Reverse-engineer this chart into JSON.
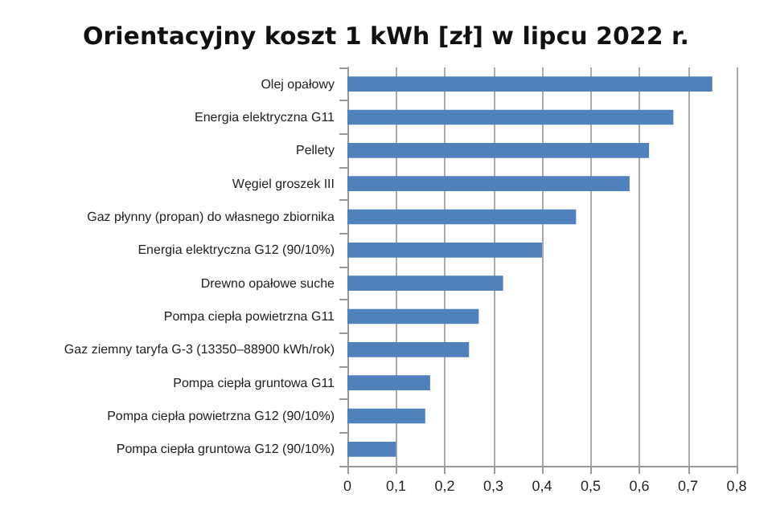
{
  "chart_data": {
    "type": "bar",
    "orientation": "horizontal",
    "title": "Orientacyjny koszt 1 kWh [zł] w lipcu 2022 r.",
    "categories": [
      "Olej opałowy",
      "Energia elektryczna G11",
      "Pellety",
      "Węgiel groszek III",
      "Gaz płynny (propan) do własnego zbiornika",
      "Energia elektryczna G12 (90/10%)",
      "Drewno opałowe suche",
      "Pompa ciepła powietrzna G11",
      "Gaz ziemny taryfa G-3 (13350–88900 kWh/rok)",
      "Pompa ciepła gruntowa G11",
      "Pompa ciepła powietrzna G12 (90/10%)",
      "Pompa ciepła gruntowa G12 (90/10%)"
    ],
    "values": [
      0.75,
      0.67,
      0.62,
      0.58,
      0.47,
      0.4,
      0.32,
      0.27,
      0.25,
      0.17,
      0.16,
      0.1
    ],
    "color": "#4f81bd",
    "xlim": [
      0,
      0.8
    ],
    "xticks": [
      0,
      {
        "value": 0.1,
        "label": "0,1"
      },
      {
        "value": 0.2,
        "label": "0,2"
      },
      {
        "value": 0.3,
        "label": "0,3"
      },
      {
        "value": 0.4,
        "label": "0,4"
      },
      {
        "value": 0.5,
        "label": "0,5"
      },
      {
        "value": 0.6,
        "label": "0,6"
      },
      {
        "value": 0.7,
        "label": "0,7"
      },
      {
        "value": 0.8,
        "label": "0,8"
      }
    ],
    "grid": "x"
  }
}
